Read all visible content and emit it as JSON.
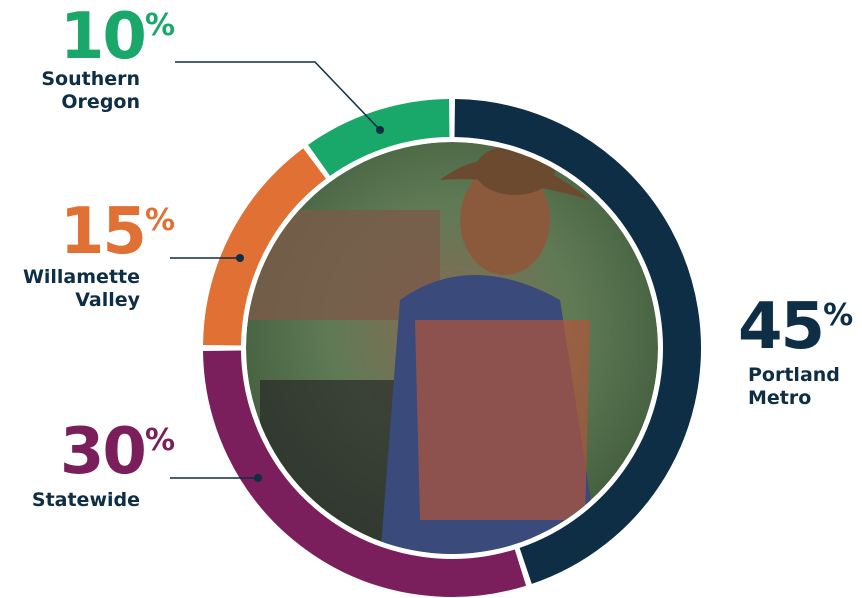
{
  "chart_data": {
    "type": "donut",
    "categories": [
      "Portland Metro",
      "Statewide",
      "Willamette Valley",
      "Southern Oregon"
    ],
    "values": [
      45,
      30,
      15,
      10
    ],
    "value_labels": [
      "45%",
      "30%",
      "15%",
      "10%"
    ],
    "colors": [
      "#0d2e45",
      "#7a1f5c",
      "#e07033",
      "#1aa86a"
    ]
  }
}
